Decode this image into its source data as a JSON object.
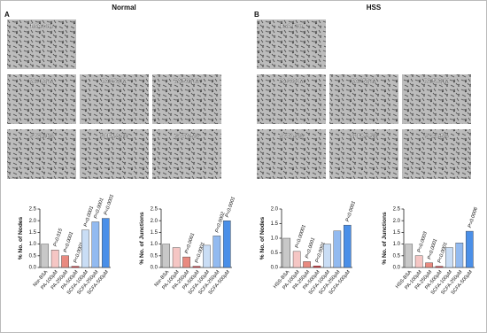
{
  "panels": [
    {
      "letter": "A",
      "title": "Normal",
      "images": [
        [
          "BSA-Con"
        ],
        [
          "PA-100µM",
          "PA-250µM",
          "PA-500µM"
        ],
        [
          "SCFA-1%",
          "SCFA-2.5%",
          "SCFA-5%"
        ]
      ]
    },
    {
      "letter": "B",
      "title": "HSS",
      "images": [
        [
          "BSA-Con"
        ],
        [
          "PA-100µM",
          "PA-250µM",
          "PA-500µM"
        ],
        [
          "SCFA-1%",
          "SCFA-2.5%",
          "SCFA-5%"
        ]
      ]
    }
  ],
  "chart_data": [
    {
      "type": "bar",
      "y_label": "% No. of Nodes",
      "categories": [
        "Nor-BSA",
        "PA-100µM",
        "PA-250µM",
        "PA-500µM",
        "SCFA-100µM",
        "SCFA-250µM",
        "SCFA-500µM"
      ],
      "values": [
        1.0,
        0.75,
        0.5,
        0.05,
        1.6,
        1.95,
        2.1
      ],
      "colors": [
        "#c8c8c8",
        "#f5c6c4",
        "#e98a80",
        "#d9363e",
        "#c9ddf5",
        "#92baf0",
        "#4a8fe8"
      ],
      "annotations": [
        null,
        "P=0.015",
        "P<0.0001",
        "P<0.0001",
        "P<0.0001",
        "P<0.0001",
        "P<0.0001"
      ],
      "ylim": [
        0,
        2.5
      ],
      "yticks": [
        {
          "value": 0,
          "label": "0.0"
        },
        0.5,
        {
          "value": 1,
          "label": "1.0"
        },
        1.5,
        {
          "value": 2,
          "label": "2.0"
        },
        2.5
      ]
    },
    {
      "type": "bar",
      "y_label": "% No. of Junctions",
      "categories": [
        "Nor-BSA",
        "PA-100µM",
        "PA-250µM",
        "PA-500µM",
        "SCFA-100µM",
        "SCFA-250µM",
        "SCFA-500µM"
      ],
      "values": [
        1.0,
        0.85,
        0.45,
        0.05,
        0.95,
        1.35,
        2.0
      ],
      "colors": [
        "#c8c8c8",
        "#f5c6c4",
        "#e98a80",
        "#d9363e",
        "#c9ddf5",
        "#92baf0",
        "#4a8fe8"
      ],
      "annotations": [
        null,
        null,
        "P=0.0001",
        "P<0.0001",
        null,
        "P=0.0002",
        "P<0.0001"
      ],
      "ylim": [
        0,
        2.5
      ],
      "yticks": [
        {
          "value": 0,
          "label": "0.0"
        },
        0.5,
        {
          "value": 1,
          "label": "1.0"
        },
        1.5,
        {
          "value": 2,
          "label": "2.0"
        },
        2.5
      ]
    },
    {
      "type": "bar",
      "y_label": "% No. of Nodes",
      "categories": [
        "HSS-BSA",
        "PA-100µM",
        "PA-250µM",
        "PA-500µM",
        "SCFA-100µM",
        "SCFA-250µM",
        "SCFA-500µM"
      ],
      "values": [
        1.0,
        0.55,
        0.2,
        0.05,
        0.8,
        1.25,
        1.45
      ],
      "colors": [
        "#c8c8c8",
        "#f5c6c4",
        "#e98a80",
        "#d9363e",
        "#c9ddf5",
        "#92baf0",
        "#4a8fe8"
      ],
      "annotations": [
        null,
        "P<0.00001",
        "P<0.0001",
        "P<0.0001",
        null,
        null,
        "P<0.0001"
      ],
      "ylim": [
        0,
        2.0
      ],
      "yticks": [
        {
          "value": 0,
          "label": "0.0"
        },
        0.5,
        {
          "value": 1,
          "label": "1.0"
        },
        1.5,
        {
          "value": 2,
          "label": "2.0"
        }
      ]
    },
    {
      "type": "bar",
      "y_label": "% No. of Junctions",
      "categories": [
        "HSS-BSA",
        "PA-100µM",
        "PA-250µM",
        "PA-500µM",
        "SCFA-100µM",
        "SCFA-250µM",
        "SCFA-500µM"
      ],
      "values": [
        1.0,
        0.5,
        0.2,
        0.05,
        0.85,
        1.05,
        1.55
      ],
      "colors": [
        "#c8c8c8",
        "#f5c6c4",
        "#e98a80",
        "#d9363e",
        "#c9ddf5",
        "#92baf0",
        "#4a8fe8"
      ],
      "annotations": [
        null,
        "P=0.0003",
        "P<0.0001",
        "P<0.0001",
        null,
        null,
        "P=0.0006"
      ],
      "ylim": [
        0,
        2.5
      ],
      "yticks": [
        {
          "value": 0,
          "label": "0.0"
        },
        0.5,
        {
          "value": 1,
          "label": "1.0"
        },
        1.5,
        {
          "value": 2,
          "label": "2.0"
        },
        2.5
      ]
    }
  ]
}
